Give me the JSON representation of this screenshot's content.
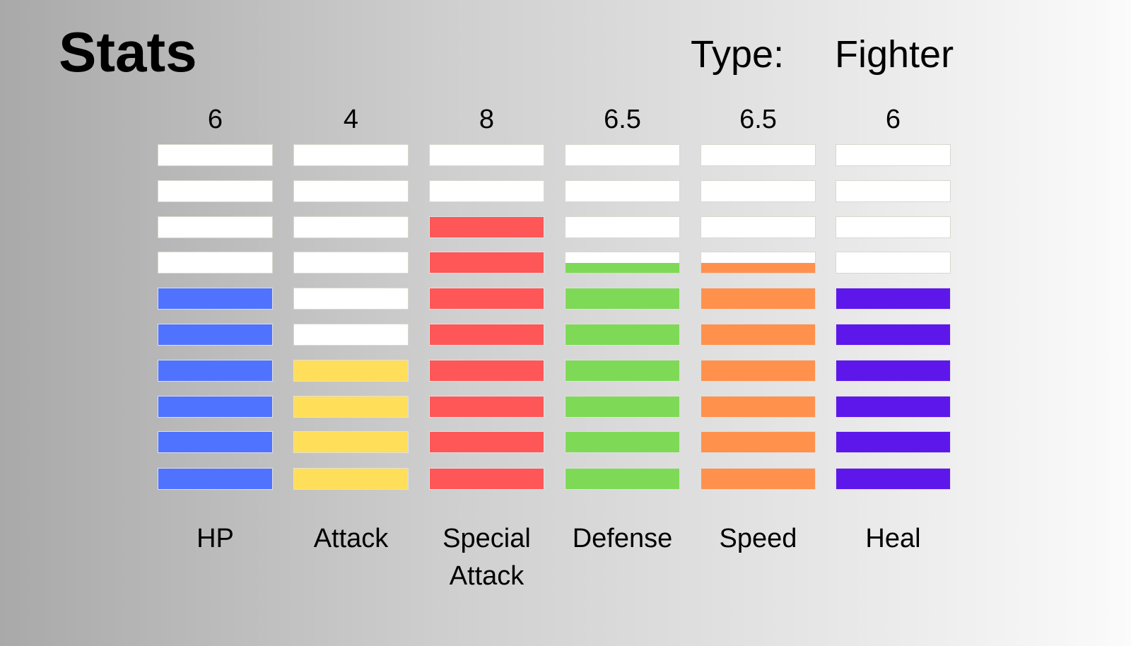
{
  "header": {
    "title": "Stats",
    "type_label": "Type:",
    "type_value": "Fighter"
  },
  "chart_data": {
    "type": "bar",
    "segments_per_bar": 10,
    "categories": [
      "HP",
      "Attack",
      "Special Attack",
      "Defense",
      "Speed",
      "Heal"
    ],
    "value_labels": [
      "6",
      "4",
      "8",
      "6.5",
      "6.5",
      "6"
    ],
    "values": [
      6,
      4,
      8,
      6.5,
      6.5,
      6
    ],
    "colors": [
      "#5073ff",
      "#ffde5a",
      "#ff5757",
      "#7ed957",
      "#ff914d",
      "#5e17eb"
    ],
    "empty_color": "#ffffff"
  }
}
